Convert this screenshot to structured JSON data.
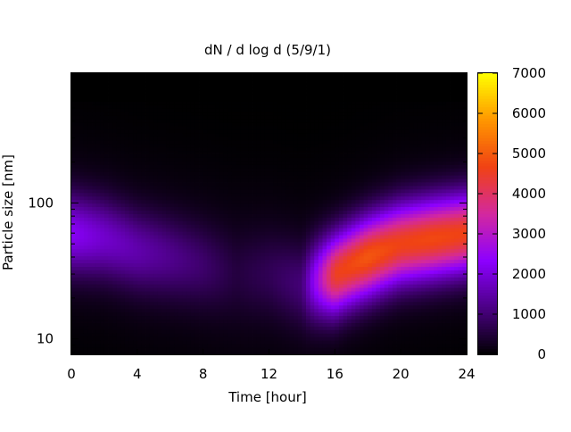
{
  "chart_data": {
    "type": "heatmap",
    "title": "dN / d log d (5/9/1)",
    "xlabel": "Time [hour]",
    "ylabel": "Particle size [nm]",
    "xlim": [
      0,
      24
    ],
    "ylim": [
      7.7,
      900
    ],
    "y_scale": "log",
    "x_ticks": [
      0,
      4,
      8,
      12,
      16,
      20,
      24
    ],
    "y_ticks": [
      10,
      100
    ],
    "colorbar": {
      "range": [
        0,
        7000
      ],
      "ticks": [
        0,
        1000,
        2000,
        3000,
        4000,
        5000,
        6000,
        7000
      ],
      "colormap": [
        "#000000",
        "#4b0084",
        "#8c00ff",
        "#d3289f",
        "#f04214",
        "#ff9600",
        "#ffff00"
      ]
    },
    "grid": false,
    "z_description_hours": [
      0,
      2,
      4,
      6,
      8,
      10,
      12,
      14,
      16,
      18,
      20,
      22,
      24
    ],
    "z_peak_diameter_nm": [
      60,
      55,
      45,
      40,
      35,
      30,
      30,
      25,
      30,
      40,
      50,
      55,
      60
    ],
    "z_peak_value": [
      2000,
      1600,
      1300,
      1000,
      700,
      300,
      500,
      800,
      4300,
      4700,
      4400,
      4500,
      4400
    ]
  }
}
